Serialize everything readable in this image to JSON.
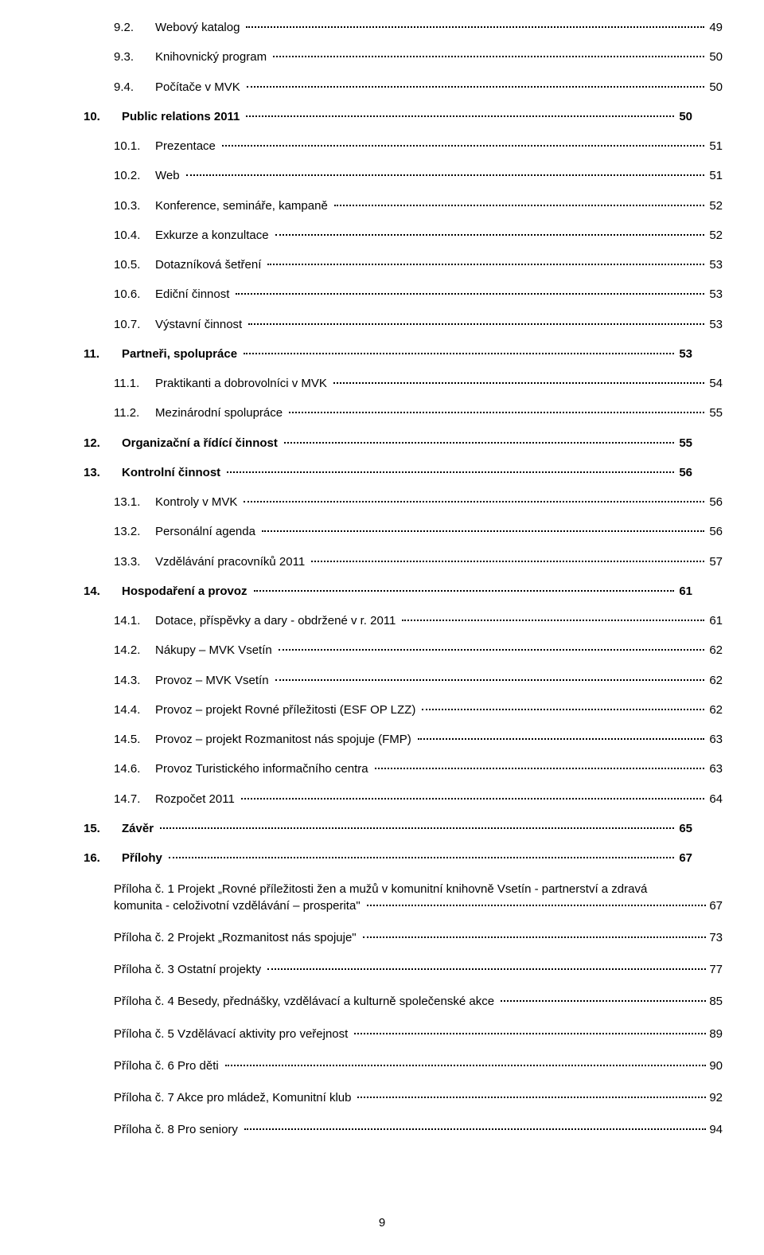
{
  "page_number": "9",
  "entries": [
    {
      "indent": 2,
      "bold": false,
      "num": "9.2.",
      "title": "Webový katalog",
      "page": "49"
    },
    {
      "indent": 2,
      "bold": false,
      "num": "9.3.",
      "title": "Knihovnický program",
      "page": "50"
    },
    {
      "indent": 2,
      "bold": false,
      "num": "9.4.",
      "title": "Počítače v MVK",
      "page": "50"
    },
    {
      "indent": 1,
      "bold": true,
      "num": "10.",
      "title": "Public relations 2011",
      "page": "50"
    },
    {
      "indent": 2,
      "bold": false,
      "num": "10.1.",
      "title": "Prezentace",
      "page": "51"
    },
    {
      "indent": 2,
      "bold": false,
      "num": "10.2.",
      "title": "Web",
      "page": "51"
    },
    {
      "indent": 2,
      "bold": false,
      "num": "10.3.",
      "title": "Konference, semináře, kampaně",
      "page": "52"
    },
    {
      "indent": 2,
      "bold": false,
      "num": "10.4.",
      "title": "Exkurze a konzultace",
      "page": "52"
    },
    {
      "indent": 2,
      "bold": false,
      "num": "10.5.",
      "title": "Dotazníková šetření",
      "page": "53"
    },
    {
      "indent": 2,
      "bold": false,
      "num": "10.6.",
      "title": "Ediční činnost",
      "page": "53"
    },
    {
      "indent": 2,
      "bold": false,
      "num": "10.7.",
      "title": "Výstavní činnost",
      "page": "53"
    },
    {
      "indent": 1,
      "bold": true,
      "num": "11.",
      "title": "Partneři, spolupráce",
      "page": "53"
    },
    {
      "indent": 2,
      "bold": false,
      "num": "11.1.",
      "title": "Praktikanti a dobrovolníci v MVK",
      "page": "54"
    },
    {
      "indent": 2,
      "bold": false,
      "num": "11.2.",
      "title": "Mezinárodní spolupráce",
      "page": "55"
    },
    {
      "indent": 1,
      "bold": true,
      "num": "12.",
      "title": "Organizační a řídící činnost",
      "page": "55"
    },
    {
      "indent": 1,
      "bold": true,
      "num": "13.",
      "title": "Kontrolní činnost",
      "page": "56"
    },
    {
      "indent": 2,
      "bold": false,
      "num": "13.1.",
      "title": "Kontroly v MVK",
      "page": "56"
    },
    {
      "indent": 2,
      "bold": false,
      "num": "13.2.",
      "title": "Personální agenda",
      "page": "56"
    },
    {
      "indent": 2,
      "bold": false,
      "num": "13.3.",
      "title": "Vzdělávání pracovníků 2011",
      "page": "57"
    },
    {
      "indent": 1,
      "bold": true,
      "num": "14.",
      "title": "Hospodaření a provoz",
      "page": "61"
    },
    {
      "indent": 2,
      "bold": false,
      "num": "14.1.",
      "title": "Dotace, příspěvky a dary - obdržené v r. 2011",
      "page": "61"
    },
    {
      "indent": 2,
      "bold": false,
      "num": "14.2.",
      "title": "Nákupy – MVK Vsetín",
      "page": "62"
    },
    {
      "indent": 2,
      "bold": false,
      "num": "14.3.",
      "title": "Provoz – MVK Vsetín",
      "page": "62"
    },
    {
      "indent": 2,
      "bold": false,
      "num": "14.4.",
      "title": "Provoz – projekt Rovné příležitosti (ESF OP LZZ)",
      "page": "62"
    },
    {
      "indent": 2,
      "bold": false,
      "num": "14.5.",
      "title": "Provoz – projekt Rozmanitost nás spojuje  (FMP)",
      "page": "63"
    },
    {
      "indent": 2,
      "bold": false,
      "num": "14.6.",
      "title": "Provoz Turistického informačního centra",
      "page": "63"
    },
    {
      "indent": 2,
      "bold": false,
      "num": "14.7.",
      "title": "Rozpočet 2011",
      "page": "64"
    },
    {
      "indent": 1,
      "bold": true,
      "num": "15.",
      "title": "Závěr",
      "page": "65"
    },
    {
      "indent": 1,
      "bold": true,
      "num": "16.",
      "title": "Přílohy",
      "page": "67"
    }
  ],
  "attachments": [
    {
      "wrap": true,
      "title_line1": "Příloha č. 1 Projekt „Rovné příležitosti žen a mužů  v komunitní knihovně Vsetín - partnerství a zdravá",
      "title_line2": "komunita - celoživotní vzdělávání – prosperita\"",
      "page": "67"
    },
    {
      "wrap": false,
      "title": "Příloha č. 2  Projekt „Rozmanitost nás spojuje\"",
      "page": "73"
    },
    {
      "wrap": false,
      "title": "Příloha č. 3  Ostatní projekty",
      "page": "77"
    },
    {
      "wrap": false,
      "title": "Příloha č. 4 Besedy, přednášky, vzdělávací  a kulturně společenské akce",
      "page": "85"
    },
    {
      "wrap": false,
      "title": "Příloha č. 5  Vzdělávací aktivity pro veřejnost",
      "page": "89"
    },
    {
      "wrap": false,
      "title": "Příloha č. 6  Pro děti",
      "page": "90"
    },
    {
      "wrap": false,
      "title": "Příloha č. 7  Akce pro mládež, Komunitní klub",
      "page": "92"
    },
    {
      "wrap": false,
      "title": "Příloha č. 8  Pro seniory",
      "page": "94"
    }
  ],
  "num_widths": {
    "level1": "48px",
    "level2": "52px"
  }
}
